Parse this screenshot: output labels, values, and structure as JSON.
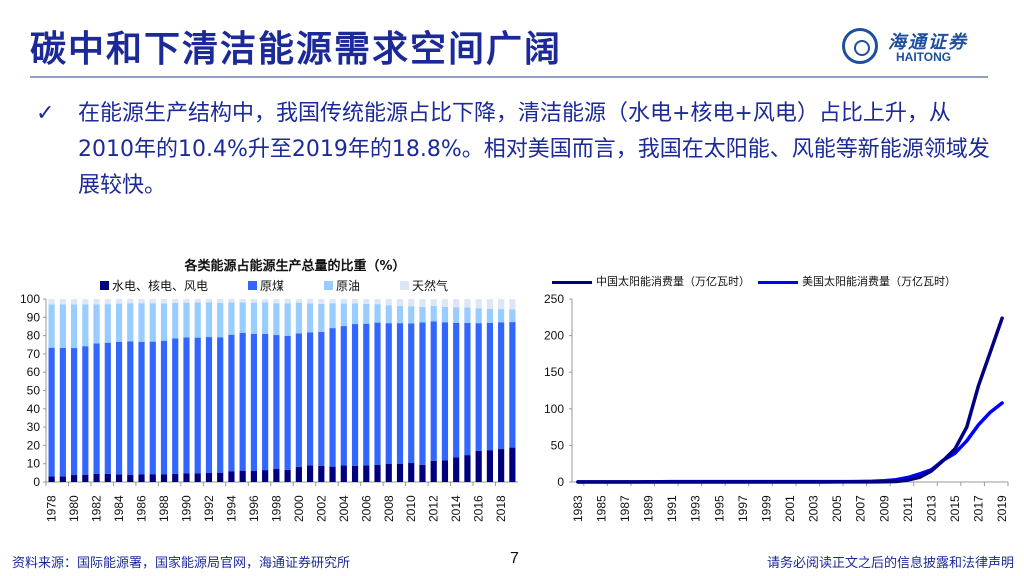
{
  "header": {
    "title": "碳中和下清洁能源需求空间广阔",
    "logo_cn": "海通证券",
    "logo_en": "HAITONG"
  },
  "bullet": {
    "icon": "✓",
    "text": "在能源生产结构中，我国传统能源占比下降，清洁能源（水电+核电+风电）占比上升，从2010年的10.4%升至2019年的18.8%。相对美国而言，我国在太阳能、风能等新能源领域发展较快。"
  },
  "footer": {
    "source": "资料来源：国际能源署，国家能源局官网，海通证券研究所",
    "page": "7",
    "disclaimer": "请务必阅读正文之后的信息披露和法律声明"
  },
  "colors": {
    "hydro_nuclear_wind": "#00007f",
    "coal": "#3366ff",
    "oil": "#99ccff",
    "gas": "#dde6f4",
    "china_solar": "#000080",
    "us_solar": "#0000ff",
    "title": "#1c2a99"
  },
  "chart_data": [
    {
      "type": "bar",
      "stacked": true,
      "title": "各类能源占能源生产总量的比重（%）",
      "xlabel": "",
      "ylabel": "",
      "ylim": [
        0,
        100
      ],
      "yticks": [
        0,
        10,
        20,
        30,
        40,
        50,
        60,
        70,
        80,
        90,
        100
      ],
      "legend_position": "top",
      "categories": [
        "1978",
        "1979",
        "1980",
        "1981",
        "1982",
        "1983",
        "1984",
        "1985",
        "1986",
        "1987",
        "1988",
        "1989",
        "1990",
        "1991",
        "1992",
        "1993",
        "1994",
        "1995",
        "1996",
        "1997",
        "1998",
        "1999",
        "2000",
        "2001",
        "2002",
        "2003",
        "2004",
        "2005",
        "2006",
        "2007",
        "2008",
        "2009",
        "2010",
        "2011",
        "2012",
        "2013",
        "2014",
        "2015",
        "2016",
        "2017",
        "2018",
        "2019"
      ],
      "xtick_labels": [
        "1978",
        "1980",
        "1982",
        "1984",
        "1986",
        "1988",
        "1990",
        "1992",
        "1994",
        "1996",
        "1998",
        "2000",
        "2002",
        "2004",
        "2006",
        "2008",
        "2010",
        "2012",
        "2014",
        "2016",
        "2018"
      ],
      "series": [
        {
          "name": "水电、核电、风电",
          "values": [
            3.1,
            3.1,
            3.8,
            4.0,
            4.4,
            4.5,
            4.2,
            4.0,
            4.1,
            4.1,
            4.1,
            4.4,
            4.8,
            4.8,
            4.9,
            5.1,
            5.9,
            6.2,
            6.0,
            6.5,
            7.1,
            6.6,
            8.3,
            9.1,
            8.9,
            8.4,
            9.0,
            8.9,
            9.0,
            9.3,
            10.0,
            10.0,
            10.4,
            9.4,
            11.6,
            11.9,
            13.4,
            14.7,
            17.0,
            17.4,
            18.0,
            18.8
          ]
        },
        {
          "name": "原煤",
          "values": [
            70.3,
            70.2,
            69.4,
            70.2,
            71.3,
            71.6,
            72.4,
            72.8,
            72.4,
            72.6,
            73.1,
            74.1,
            74.2,
            74.1,
            74.3,
            74.0,
            74.6,
            75.3,
            75.0,
            74.4,
            73.2,
            73.3,
            72.9,
            72.6,
            73.1,
            75.7,
            76.2,
            77.4,
            77.5,
            77.8,
            76.8,
            76.8,
            76.2,
            77.8,
            76.2,
            75.4,
            73.6,
            72.2,
            69.8,
            69.6,
            69.3,
            68.6
          ]
        },
        {
          "name": "原油",
          "values": [
            23.7,
            23.8,
            23.8,
            22.9,
            21.3,
            21.1,
            20.9,
            20.9,
            21.2,
            21.0,
            20.4,
            19.3,
            19.0,
            19.2,
            18.9,
            18.7,
            17.6,
            16.6,
            17.0,
            17.2,
            17.4,
            17.8,
            16.8,
            15.9,
            15.3,
            13.6,
            12.4,
            11.3,
            10.8,
            10.1,
            9.8,
            9.4,
            9.3,
            8.5,
            8.5,
            8.4,
            8.4,
            8.5,
            8.2,
            7.6,
            7.2,
            6.9
          ]
        },
        {
          "name": "天然气",
          "values": [
            2.9,
            2.9,
            3.0,
            2.9,
            3.0,
            2.8,
            2.5,
            2.3,
            2.3,
            2.3,
            2.4,
            2.2,
            2.0,
            1.9,
            1.9,
            2.2,
            1.9,
            1.9,
            2.0,
            1.9,
            2.3,
            2.3,
            2.0,
            2.4,
            2.7,
            2.3,
            2.4,
            2.4,
            2.7,
            2.8,
            3.4,
            3.8,
            4.1,
            4.3,
            3.7,
            4.3,
            4.6,
            4.6,
            5.0,
            5.4,
            5.5,
            5.7
          ]
        }
      ]
    },
    {
      "type": "line",
      "title": "",
      "xlabel": "",
      "ylabel": "",
      "ylim": [
        0,
        250
      ],
      "yticks": [
        0,
        50,
        100,
        150,
        200,
        250
      ],
      "legend_position": "top",
      "x": [
        "1983",
        "1984",
        "1985",
        "1986",
        "1987",
        "1988",
        "1989",
        "1990",
        "1991",
        "1992",
        "1993",
        "1994",
        "1995",
        "1996",
        "1997",
        "1998",
        "1999",
        "2000",
        "2001",
        "2002",
        "2003",
        "2004",
        "2005",
        "2006",
        "2007",
        "2008",
        "2009",
        "2010",
        "2011",
        "2012",
        "2013",
        "2014",
        "2015",
        "2016",
        "2017",
        "2018",
        "2019"
      ],
      "xtick_labels": [
        "1983",
        "1985",
        "1987",
        "1989",
        "1991",
        "1993",
        "1995",
        "1997",
        "1999",
        "2001",
        "2003",
        "2005",
        "2007",
        "2009",
        "2011",
        "2013",
        "2015",
        "2017",
        "2019"
      ],
      "series": [
        {
          "name": "中国太阳能消费量（万亿瓦时）",
          "values": [
            0,
            0,
            0,
            0,
            0,
            0,
            0,
            0,
            0,
            0,
            0,
            0,
            0,
            0,
            0,
            0,
            0,
            0,
            0,
            0,
            0,
            0,
            0.1,
            0.1,
            0.1,
            0.2,
            0.4,
            0.7,
            2.6,
            6.4,
            15.1,
            29.2,
            45.2,
            75.1,
            131.7,
            177.5,
            223.8
          ]
        },
        {
          "name": "美国太阳能消费量（万亿瓦时）",
          "values": [
            0.1,
            0.1,
            0.1,
            0.1,
            0.1,
            0.1,
            0.3,
            0.4,
            0.5,
            0.5,
            0.5,
            0.5,
            0.5,
            0.5,
            0.5,
            0.5,
            0.5,
            0.5,
            0.5,
            0.6,
            0.5,
            0.6,
            0.6,
            0.6,
            0.7,
            0.9,
            1.6,
            3.1,
            6.1,
            11.1,
            16.6,
            29.8,
            39.4,
            56.3,
            78.1,
            95.3,
            107.9
          ]
        }
      ]
    }
  ]
}
